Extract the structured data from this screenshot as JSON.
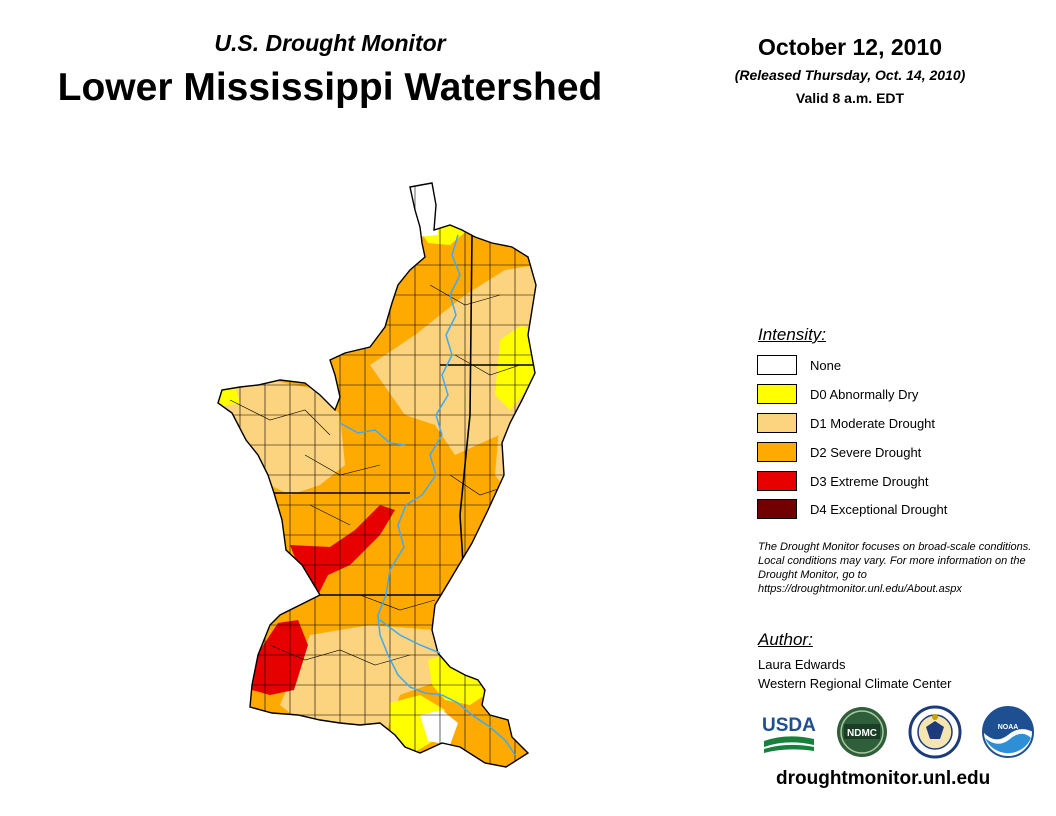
{
  "header": {
    "subtitle": "U.S. Drought Monitor",
    "title": "Lower Mississippi Watershed",
    "date": "October 12, 2010",
    "released": "(Released Thursday, Oct. 14, 2010)",
    "valid": "Valid 8 a.m. EDT"
  },
  "legend": {
    "title": "Intensity:",
    "items": [
      {
        "label": "None",
        "color": "#ffffff"
      },
      {
        "label": "D0 Abnormally Dry",
        "color": "#ffff00"
      },
      {
        "label": "D1 Moderate Drought",
        "color": "#fcd37f"
      },
      {
        "label": "D2 Severe Drought",
        "color": "#ffaa00"
      },
      {
        "label": "D3 Extreme Drought",
        "color": "#e60000"
      },
      {
        "label": "D4 Exceptional Drought",
        "color": "#730000"
      }
    ]
  },
  "note": "The Drought Monitor focuses on broad-scale conditions. Local conditions may vary. For more information on the Drought Monitor, go to https://droughtmonitor.unl.edu/About.aspx",
  "author": {
    "title": "Author:",
    "name": "Laura Edwards",
    "org": "Western Regional Climate Center"
  },
  "logos": {
    "usda": "USDA",
    "ndmc": "NDMC",
    "noaa": "NOAA"
  },
  "website": "droughtmonitor.unl.edu",
  "map_colors": {
    "water": "#3fa9f5",
    "county_lines": "#000000"
  }
}
